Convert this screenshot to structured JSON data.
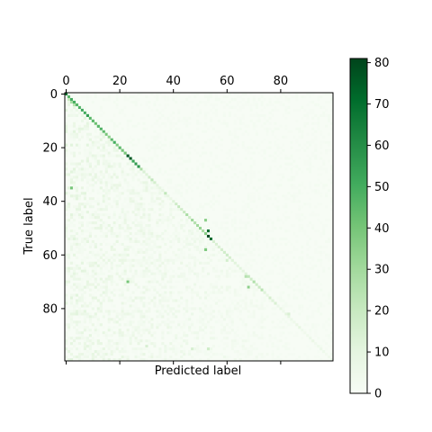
{
  "chart_data": {
    "type": "heatmap",
    "title": "",
    "xlabel": "Predicted label",
    "ylabel": "True label",
    "n_classes": 100,
    "xlim": [
      0,
      99
    ],
    "ylim": [
      0,
      99
    ],
    "x_ticks": [
      0,
      20,
      40,
      60,
      80
    ],
    "y_ticks": [
      0,
      20,
      40,
      60,
      80
    ],
    "x_tick_labels": [
      "0",
      "20",
      "40",
      "60",
      "80"
    ],
    "y_tick_labels": [
      "0",
      "20",
      "40",
      "60",
      "80"
    ],
    "x_axis_position": "top",
    "colormap": "Greens",
    "colorbar": {
      "min": 0,
      "max": 81,
      "ticks": [
        0,
        10,
        20,
        30,
        40,
        50,
        60,
        70,
        80
      ],
      "tick_labels": [
        "0",
        "10",
        "20",
        "30",
        "40",
        "50",
        "60",
        "70",
        "80"
      ]
    },
    "diagonal_values": [
      70,
      46,
      51,
      50,
      46,
      48,
      52,
      51,
      55,
      46,
      45,
      42,
      46,
      48,
      45,
      40,
      35,
      45,
      50,
      38,
      45,
      40,
      40,
      76,
      76,
      52,
      56,
      57,
      28,
      14,
      12,
      17,
      22,
      16,
      10,
      9,
      10,
      22,
      9,
      7,
      12,
      18,
      21,
      17,
      20,
      28,
      18,
      31,
      25,
      30,
      33,
      27,
      36,
      80,
      72,
      15,
      14,
      14,
      16,
      17,
      18,
      16,
      12,
      11,
      10,
      11,
      10,
      12,
      22,
      18,
      26,
      18,
      19,
      24,
      12,
      9,
      16,
      12,
      14,
      6,
      8,
      5,
      10,
      9,
      6,
      5,
      7,
      9,
      5,
      4,
      5,
      6,
      7,
      4,
      5,
      6,
      5,
      3,
      4,
      5
    ],
    "off_diagonal_notable": [
      {
        "true": 35,
        "pred": 2,
        "value": 40
      },
      {
        "true": 51,
        "pred": 53,
        "value": 72
      },
      {
        "true": 47,
        "pred": 52,
        "value": 35
      },
      {
        "true": 58,
        "pred": 52,
        "value": 38
      },
      {
        "true": 72,
        "pred": 68,
        "value": 35
      },
      {
        "true": 70,
        "pred": 23,
        "value": 40
      },
      {
        "true": 68,
        "pred": 67,
        "value": 25
      },
      {
        "true": 95,
        "pred": 47,
        "value": 15
      },
      {
        "true": 95,
        "pred": 53,
        "value": 18
      },
      {
        "true": 94,
        "pred": 30,
        "value": 15
      },
      {
        "true": 82,
        "pred": 83,
        "value": 14
      },
      {
        "true": 62,
        "pred": 60,
        "value": 16
      },
      {
        "true": 3,
        "pred": 2,
        "value": 28
      },
      {
        "true": 4,
        "pred": 3,
        "value": 25
      },
      {
        "true": 2,
        "pred": 1,
        "value": 20
      }
    ],
    "background_value_range": [
      0,
      12
    ]
  }
}
